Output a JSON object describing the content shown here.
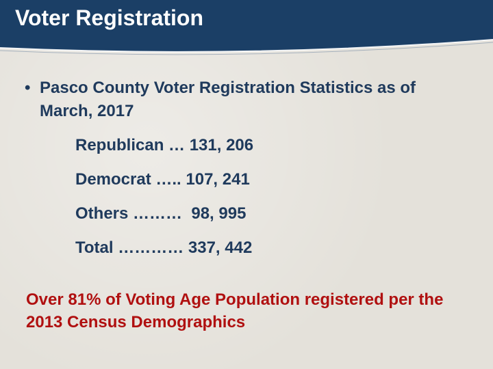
{
  "slide": {
    "title": "Voter Registration",
    "bullet_symbol": "•",
    "bullet_text": "Pasco County Voter Registration Statistics as of March, 2017",
    "stats": [
      "Republican … 131, 206",
      "Democrat ….. 107, 241",
      "Others ………  98, 995",
      "Total ………… 337, 442"
    ],
    "note": "Over 81% of Voting Age Population registered per the 2013 Census Demographics"
  },
  "colors": {
    "header": "#1b3f66",
    "header_accent": "#ffffff",
    "text": "#1f3a5c",
    "note": "#b01010",
    "background": "#e4e1da"
  }
}
